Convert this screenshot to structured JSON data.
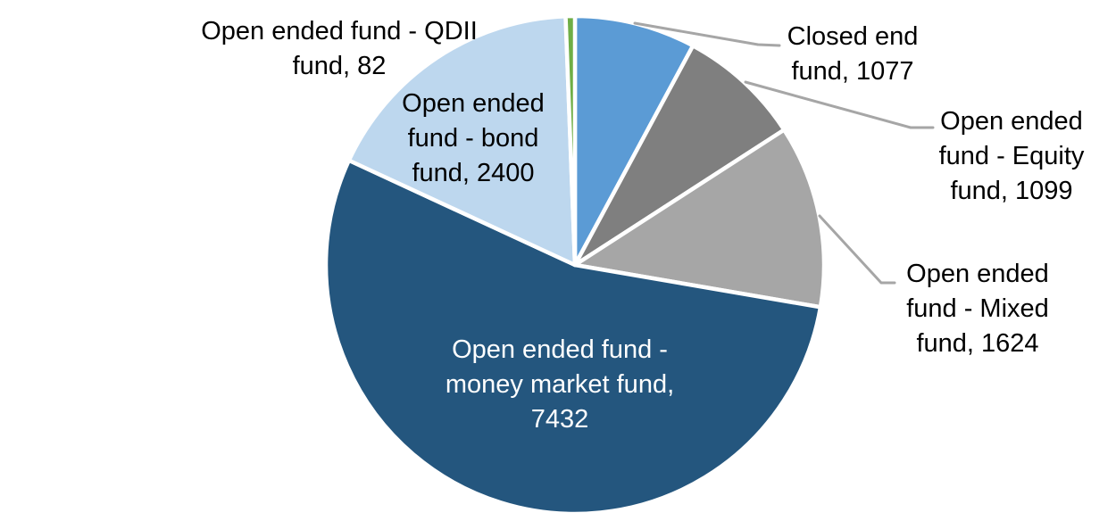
{
  "chart_data": {
    "type": "pie",
    "title": "",
    "direction": "clockwise",
    "start_angle_deg": 0,
    "legend": "none",
    "labels_style": "category name and value, outside with leader lines; largest slice labeled inside",
    "categories": [
      "Closed end fund",
      "Open ended fund - Equity fund",
      "Open ended fund - Mixed fund",
      "Open ended fund - money market fund",
      "Open ended fund - bond fund",
      "Open ended fund - QDII fund"
    ],
    "values": [
      1077,
      1099,
      1624,
      7432,
      2400,
      82
    ],
    "slices": [
      {
        "id": "closed-end-fund",
        "label": "Closed end fund",
        "value": 1077,
        "color": "#5B9BD5"
      },
      {
        "id": "equity-fund",
        "label": "Open ended fund - Equity fund",
        "value": 1099,
        "color": "#7F7F7F"
      },
      {
        "id": "mixed-fund",
        "label": "Open ended fund - Mixed fund",
        "value": 1624,
        "color": "#A6A6A6"
      },
      {
        "id": "money-market-fund",
        "label": "Open ended fund - money market fund",
        "value": 7432,
        "color": "#24567E"
      },
      {
        "id": "bond-fund",
        "label": "Open ended fund - bond fund",
        "value": 2400,
        "color": "#BDD7EE"
      },
      {
        "id": "qdii-fund",
        "label": "Open ended fund - QDII fund",
        "value": 82,
        "color": "#6FAE46"
      }
    ],
    "slice_border_color": "#FFFFFF",
    "leader_line_color": "#A6A6A6",
    "label_text_color": "#000000",
    "inside_label_text_color": "#FFFFFF",
    "labels": {
      "qdii": {
        "lines": [
          "Open ended fund - QDII",
          "fund, 82"
        ]
      },
      "bond": {
        "lines": [
          "Open ended",
          "fund - bond",
          "fund, 2400"
        ]
      },
      "closed": {
        "lines": [
          "Closed end",
          "fund, 1077"
        ]
      },
      "equity": {
        "lines": [
          "Open ended",
          "fund - Equity",
          "fund, 1099"
        ]
      },
      "mixed": {
        "lines": [
          "Open ended",
          "fund - Mixed",
          "fund, 1624"
        ]
      },
      "money_market": {
        "lines": [
          "Open ended fund -",
          "money market fund,",
          "7432"
        ]
      }
    }
  }
}
